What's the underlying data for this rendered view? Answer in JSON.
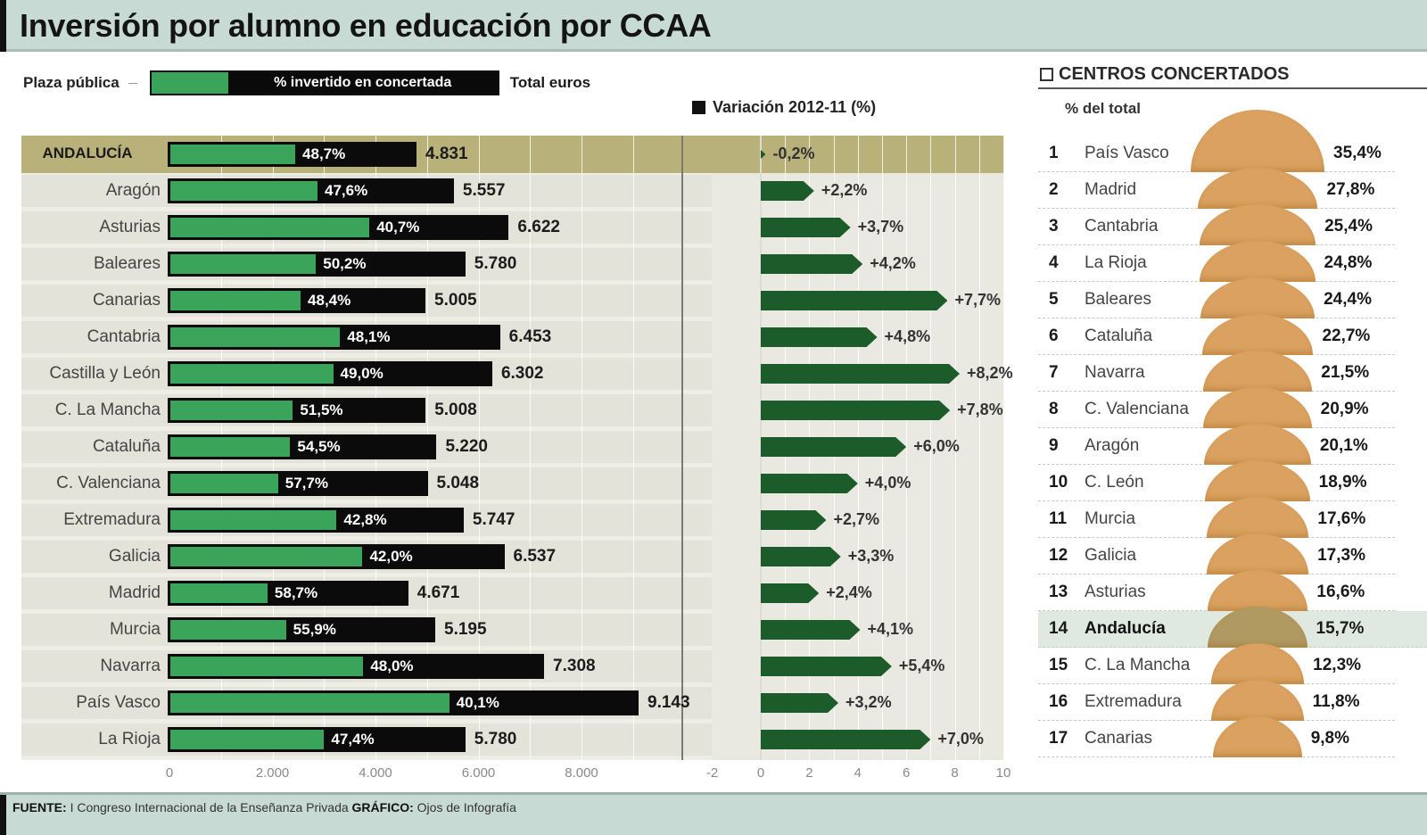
{
  "title": "Inversión por alumno en educación por CCAA",
  "legend": {
    "left_label": "Plaza pública",
    "bar_label": "% invertido en concertada",
    "right_label": "Total euros",
    "variation_label": "Variación 2012-11 (%)"
  },
  "axes": {
    "euros_ticks": [
      "0",
      "2.000",
      "4.000",
      "6.000",
      "8.000"
    ],
    "variation_ticks": [
      "-2",
      "0",
      "2",
      "4",
      "6",
      "8",
      "10"
    ]
  },
  "rows": [
    {
      "region": "ANDALUCÍA",
      "total": "4.831",
      "pct": "48,7%",
      "variation": "-0,2%",
      "highlight": true
    },
    {
      "region": "Aragón",
      "total": "5.557",
      "pct": "47,6%",
      "variation": "+2,2%"
    },
    {
      "region": "Asturias",
      "total": "6.622",
      "pct": "40,7%",
      "variation": "+3,7%"
    },
    {
      "region": "Baleares",
      "total": "5.780",
      "pct": "50,2%",
      "variation": "+4,2%"
    },
    {
      "region": "Canarias",
      "total": "5.005",
      "pct": "48,4%",
      "variation": "+7,7%"
    },
    {
      "region": "Cantabria",
      "total": "6.453",
      "pct": "48,1%",
      "variation": "+4,8%"
    },
    {
      "region": "Castilla y León",
      "total": "6.302",
      "pct": "49,0%",
      "variation": "+8,2%"
    },
    {
      "region": "C. La Mancha",
      "total": "5.008",
      "pct": "51,5%",
      "variation": "+7,8%"
    },
    {
      "region": "Cataluña",
      "total": "5.220",
      "pct": "54,5%",
      "variation": "+6,0%"
    },
    {
      "region": "C. Valenciana",
      "total": "5.048",
      "pct": "57,7%",
      "variation": "+4,0%"
    },
    {
      "region": "Extremadura",
      "total": "5.747",
      "pct": "42,8%",
      "variation": "+2,7%"
    },
    {
      "region": "Galicia",
      "total": "6.537",
      "pct": "42,0%",
      "variation": "+3,3%"
    },
    {
      "region": "Madrid",
      "total": "4.671",
      "pct": "58,7%",
      "variation": "+2,4%"
    },
    {
      "region": "Murcia",
      "total": "5.195",
      "pct": "55,9%",
      "variation": "+4,1%"
    },
    {
      "region": "Navarra",
      "total": "7.308",
      "pct": "48,0%",
      "variation": "+5,4%"
    },
    {
      "region": "País Vasco",
      "total": "9.143",
      "pct": "40,1%",
      "variation": "+3,2%"
    },
    {
      "region": "La Rioja",
      "total": "5.780",
      "pct": "47,4%",
      "variation": "+7,0%"
    }
  ],
  "centros": {
    "title": "CENTROS CONCERTADOS",
    "subtitle": "% del total",
    "items": [
      {
        "rank": "1",
        "name": "País Vasco",
        "value": "35,4%"
      },
      {
        "rank": "2",
        "name": "Madrid",
        "value": "27,8%"
      },
      {
        "rank": "3",
        "name": "Cantabria",
        "value": "25,4%"
      },
      {
        "rank": "4",
        "name": "La Rioja",
        "value": "24,8%"
      },
      {
        "rank": "5",
        "name": "Baleares",
        "value": "24,4%"
      },
      {
        "rank": "6",
        "name": "Cataluña",
        "value": "22,7%"
      },
      {
        "rank": "7",
        "name": "Navarra",
        "value": "21,5%"
      },
      {
        "rank": "8",
        "name": "C. Valenciana",
        "value": "20,9%"
      },
      {
        "rank": "9",
        "name": "Aragón",
        "value": "20,1%"
      },
      {
        "rank": "10",
        "name": "C. León",
        "value": "18,9%"
      },
      {
        "rank": "11",
        "name": "Murcia",
        "value": "17,6%"
      },
      {
        "rank": "12",
        "name": "Galicia",
        "value": "17,3%"
      },
      {
        "rank": "13",
        "name": "Asturias",
        "value": "16,6%"
      },
      {
        "rank": "14",
        "name": "Andalucía",
        "value": "15,7%",
        "highlight": true
      },
      {
        "rank": "15",
        "name": "C. La Mancha",
        "value": "12,3%"
      },
      {
        "rank": "16",
        "name": "Extremadura",
        "value": "11,8%"
      },
      {
        "rank": "17",
        "name": "Canarias",
        "value": "9,8%"
      }
    ]
  },
  "footer": {
    "source_label": "FUENTE:",
    "source_text": "I Congreso Internacional de la Enseñanza Privada",
    "graphic_label": "GRÁFICO:",
    "graphic_text": "Ojos de Infografía"
  },
  "colors": {
    "green": "#3aa55a",
    "dark_green": "#1c5c2a",
    "black": "#0b0b0b",
    "highlight_row": "#b8b17a",
    "dome": "#daa160",
    "title_bg": "#c8dad4"
  },
  "chart_data": [
    {
      "type": "bar",
      "title": "Inversión por alumno en educación por CCAA",
      "xlabel": "Total euros",
      "ylabel": "",
      "xlim": [
        0,
        9500
      ],
      "categories": [
        "Andalucía",
        "Aragón",
        "Asturias",
        "Baleares",
        "Canarias",
        "Cantabria",
        "Castilla y León",
        "C. La Mancha",
        "Cataluña",
        "C. Valenciana",
        "Extremadura",
        "Galicia",
        "Madrid",
        "Murcia",
        "Navarra",
        "País Vasco",
        "La Rioja"
      ],
      "series": [
        {
          "name": "Total euros por alumno (plaza pública)",
          "values": [
            4831,
            5557,
            6622,
            5780,
            5005,
            6453,
            6302,
            5008,
            5220,
            5048,
            5747,
            6537,
            4671,
            5195,
            7308,
            9143,
            5780
          ]
        },
        {
          "name": "% invertido en concertada",
          "values": [
            48.7,
            47.6,
            40.7,
            50.2,
            48.4,
            48.1,
            49.0,
            51.5,
            54.5,
            57.7,
            42.8,
            42.0,
            58.7,
            55.9,
            48.0,
            40.1,
            47.4
          ]
        }
      ],
      "legend": [
        "Plaza pública",
        "% invertido en concertada",
        "Total euros"
      ],
      "grid": true
    },
    {
      "type": "bar",
      "title": "Variación 2012-11 (%)",
      "xlim": [
        -2,
        10
      ],
      "categories": [
        "Andalucía",
        "Aragón",
        "Asturias",
        "Baleares",
        "Canarias",
        "Cantabria",
        "Castilla y León",
        "C. La Mancha",
        "Cataluña",
        "C. Valenciana",
        "Extremadura",
        "Galicia",
        "Madrid",
        "Murcia",
        "Navarra",
        "País Vasco",
        "La Rioja"
      ],
      "values": [
        -0.2,
        2.2,
        3.7,
        4.2,
        7.7,
        4.8,
        8.2,
        7.8,
        6.0,
        4.0,
        2.7,
        3.3,
        2.4,
        4.1,
        5.4,
        3.2,
        7.0
      ]
    },
    {
      "type": "bar",
      "title": "Centros concertados (% del total)",
      "categories": [
        "País Vasco",
        "Madrid",
        "Cantabria",
        "La Rioja",
        "Baleares",
        "Cataluña",
        "Navarra",
        "C. Valenciana",
        "Aragón",
        "C. León",
        "Murcia",
        "Galicia",
        "Asturias",
        "Andalucía",
        "C. La Mancha",
        "Extremadura",
        "Canarias"
      ],
      "values": [
        35.4,
        27.8,
        25.4,
        24.8,
        24.4,
        22.7,
        21.5,
        20.9,
        20.1,
        18.9,
        17.6,
        17.3,
        16.6,
        15.7,
        12.3,
        11.8,
        9.8
      ]
    }
  ]
}
